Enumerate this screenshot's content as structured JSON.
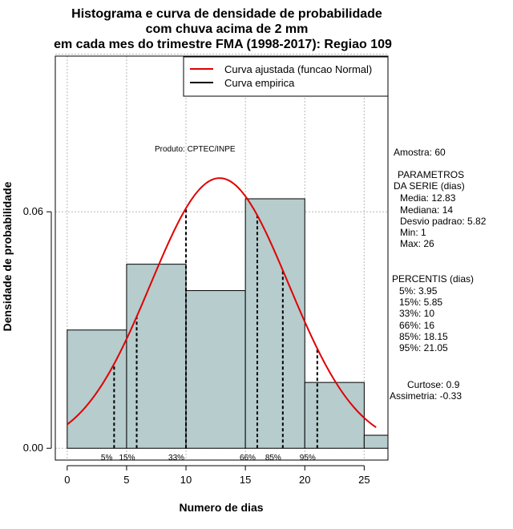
{
  "chart_data": {
    "type": "histogram",
    "title_lines": [
      "Histograma e curva de densidade de probabilidade",
      "com chuva acima de 2 mm",
      "em cada mes do trimestre FMA (1998-2017): Regiao 109"
    ],
    "xlabel": "Numero de dias",
    "ylabel": "Densidade de probabilidade",
    "xlim": [
      -1,
      27
    ],
    "ylim": [
      -0.003,
      0.0995
    ],
    "x_ticks": [
      0,
      5,
      10,
      15,
      20,
      25
    ],
    "x_tick_labels": [
      "0",
      "5",
      "10",
      "15",
      "20",
      "25"
    ],
    "y_ticks": [
      0,
      0.06
    ],
    "y_tick_labels": [
      "0.00",
      "0.06"
    ],
    "grid_x": [
      0,
      5,
      10,
      15,
      20,
      25
    ],
    "grid_y": [
      0,
      0.06,
      0.1
    ],
    "bins": [
      {
        "x0": 0,
        "x1": 5,
        "density": 0.03
      },
      {
        "x0": 5,
        "x1": 10,
        "density": 0.0467
      },
      {
        "x0": 10,
        "x1": 15,
        "density": 0.04
      },
      {
        "x0": 15,
        "x1": 20,
        "density": 0.0633
      },
      {
        "x0": 20,
        "x1": 25,
        "density": 0.0167
      },
      {
        "x0": 25,
        "x1": 27,
        "density": 0.0033
      }
    ],
    "normal_curve": {
      "mean": 12.83,
      "sd": 5.82,
      "x_from": 0,
      "x_to": 26,
      "color": "#e00000"
    },
    "bar_fill": "#b6cccd",
    "percentile_markers": [
      {
        "label": "5%",
        "x": 3.95
      },
      {
        "label": "15%",
        "x": 5.85
      },
      {
        "label": "33%",
        "x": 10
      },
      {
        "label": "66%",
        "x": 16
      },
      {
        "label": "85%",
        "x": 18.15
      },
      {
        "label": "95%",
        "x": 21.05
      }
    ],
    "legend": [
      {
        "label": "Curva ajustada (funcao Normal)",
        "color": "#e00000"
      },
      {
        "label": "Curva empirica",
        "color": "#000000"
      }
    ],
    "produto": "Produto: CPTEC/INPE",
    "amostra": "Amostra: 60",
    "parametros_header": [
      "PARAMETROS",
      "DA SERIE (dias)"
    ],
    "parametros": [
      "Media: 12.83",
      "Mediana: 14",
      "Desvio padrao: 5.82",
      "Min: 1",
      "Max: 26"
    ],
    "percentis_header": "PERCENTIS (dias)",
    "percentis": [
      "5%: 3.95",
      "15%: 5.85",
      "33%: 10",
      "66%: 16",
      "85%: 18.15",
      "95%: 21.05"
    ],
    "curtose": "Curtose: 0.9",
    "assimetria": "Assimetria: -0.33"
  }
}
